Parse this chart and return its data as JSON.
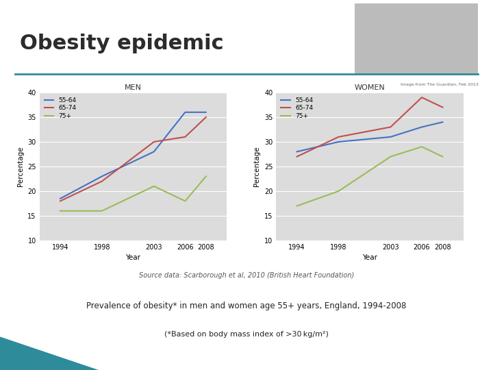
{
  "years": [
    1994,
    1998,
    2003,
    2006,
    2008
  ],
  "men": {
    "55_64": [
      18.5,
      23,
      28,
      36,
      36
    ],
    "65_74": [
      18,
      22,
      30,
      31,
      35
    ],
    "75plus": [
      16,
      16,
      21,
      18,
      23
    ]
  },
  "women": {
    "55_64": [
      28,
      30,
      31,
      33,
      34
    ],
    "65_74": [
      27,
      31,
      33,
      39,
      37
    ],
    "75plus": [
      17,
      20,
      27,
      29,
      27
    ]
  },
  "colors": {
    "55_64": "#4472C4",
    "65_74": "#C0504D",
    "75plus": "#9BBB59"
  },
  "title": "Obesity epidemic",
  "slide_bg": "#FFFFFF",
  "plot_bg": "#DCDCDC",
  "teal_line_color": "#2E8B9A",
  "source_text": "Source data: Scarborough et al, 2010 (British Heart Foundation)",
  "prevalence_text": "Prevalence of obesity* in men and women age 55+ years, England, 1994-2008",
  "footnote_text": "(*Based on body mass index of >30 kg/m²)",
  "image_credit": "Image from The Guardian, Feb 2013",
  "ylim": [
    10,
    40
  ],
  "yticks": [
    10,
    15,
    20,
    25,
    30,
    35,
    40
  ],
  "xlabel": "Year",
  "ylabel": "Percentage",
  "teal_bg_color": "#2E8B9A"
}
